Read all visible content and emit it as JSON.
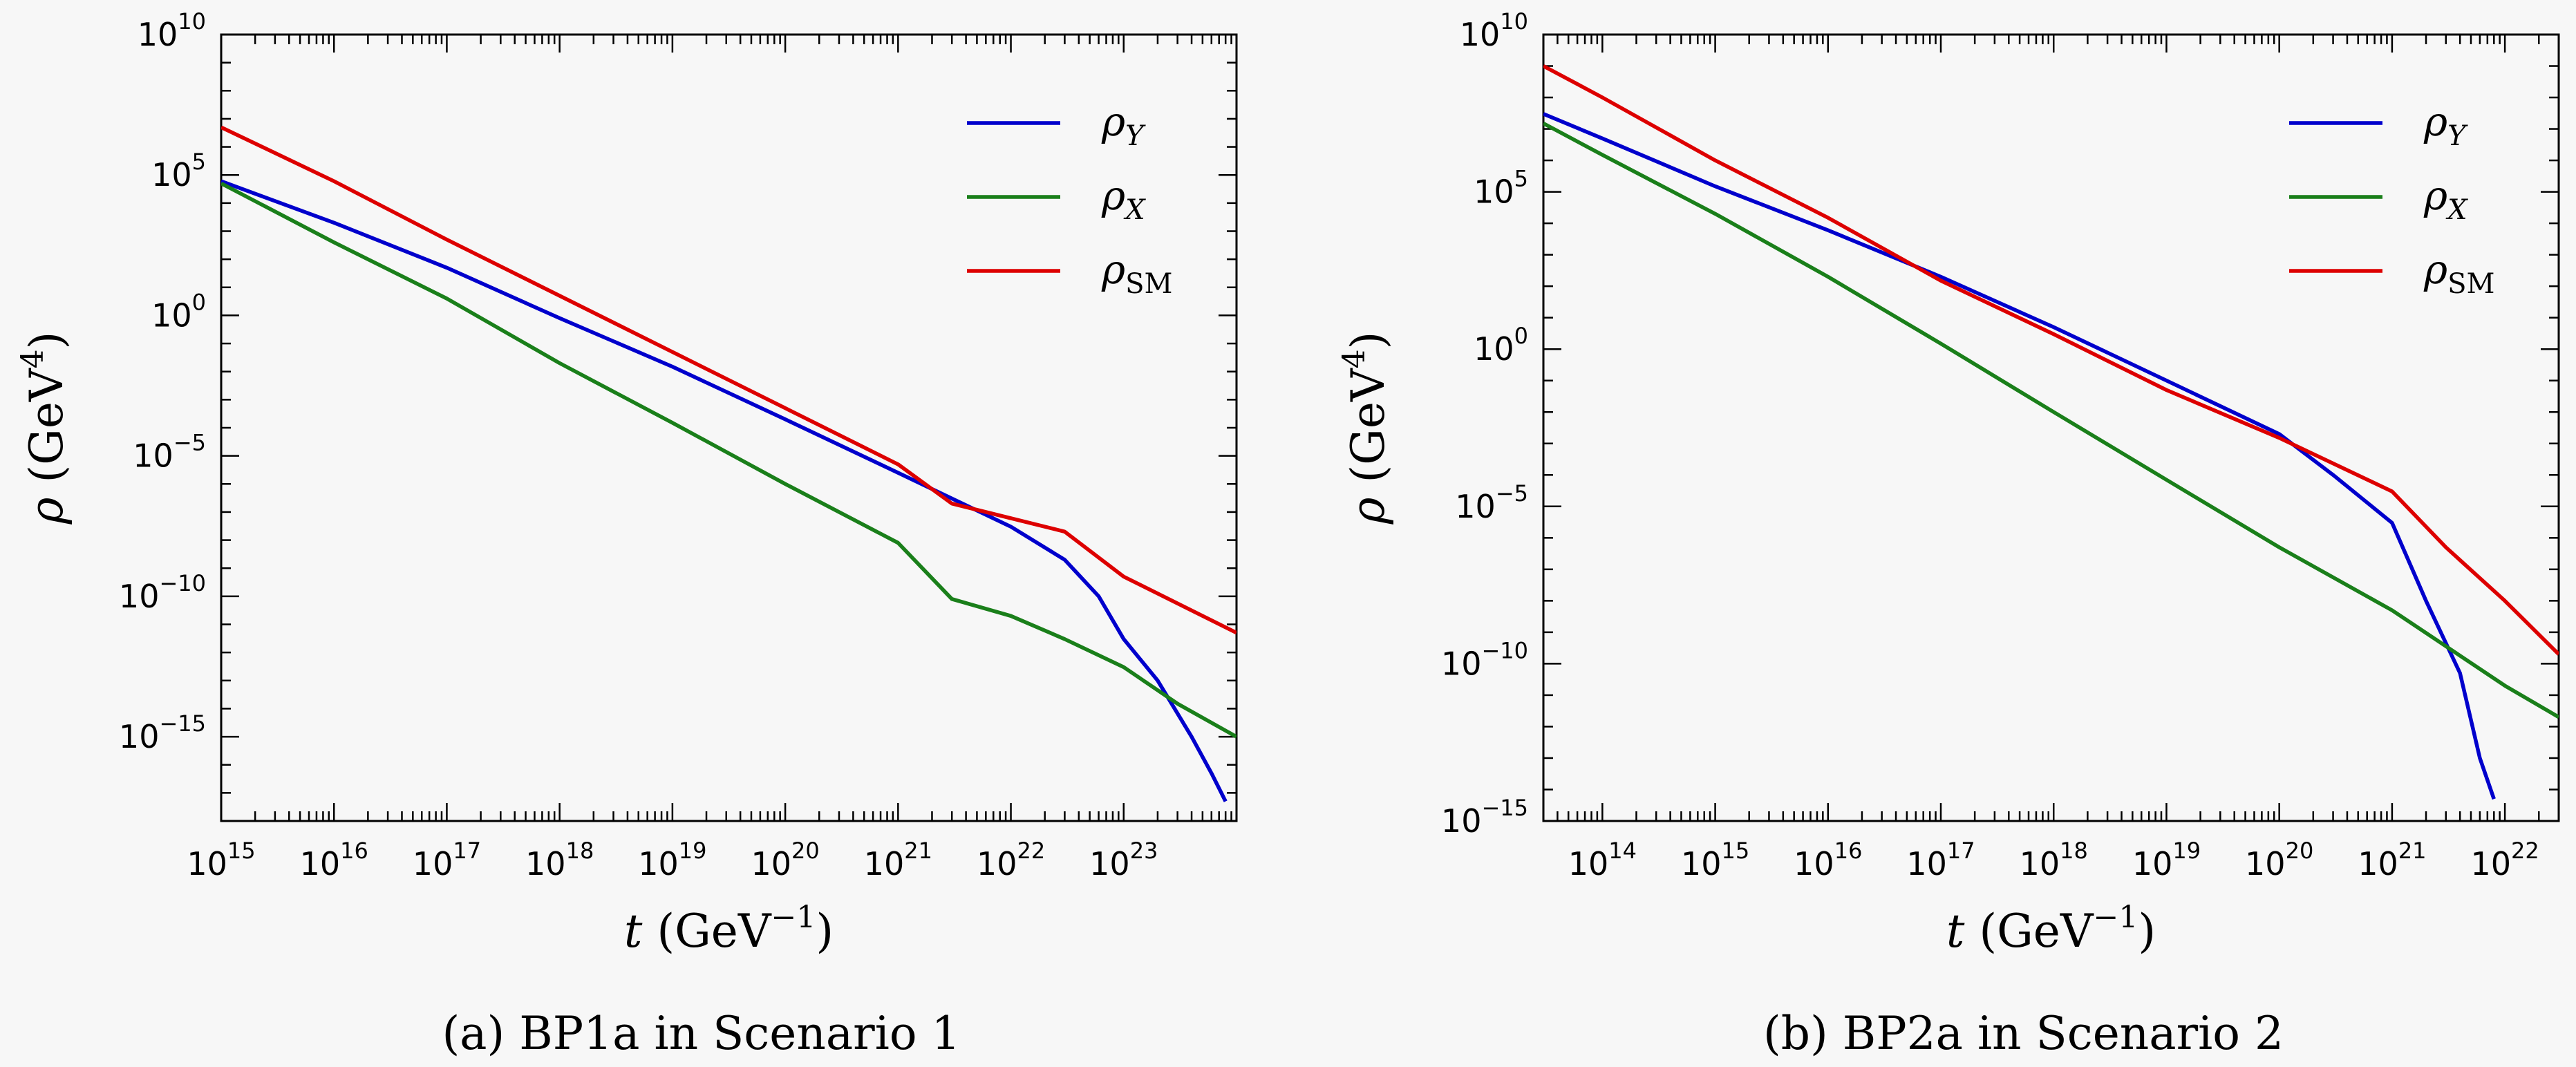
{
  "chart_data": [
    {
      "type": "line",
      "caption": "(a) BP1a in Scenario 1",
      "xlabel": {
        "symbol": "t",
        "unit": "(GeV",
        "exp": "−1",
        "close": ")"
      },
      "ylabel": {
        "symbol": "ρ",
        "unit": "(GeV",
        "exp": "4",
        "close": ")"
      },
      "xscale": "log",
      "yscale": "log",
      "xlim": [
        1000000000000000.0,
        1e+24
      ],
      "ylim": [
        1e-18,
        10000000000.0
      ],
      "xticks": [
        {
          "value": 1000000000000000.0,
          "base": "10",
          "exp": "15"
        },
        {
          "value": 1e+16,
          "base": "10",
          "exp": "16"
        },
        {
          "value": 1e+17,
          "base": "10",
          "exp": "17"
        },
        {
          "value": 1e+18,
          "base": "10",
          "exp": "18"
        },
        {
          "value": 1e+19,
          "base": "10",
          "exp": "19"
        },
        {
          "value": 1e+20,
          "base": "10",
          "exp": "20"
        },
        {
          "value": 1e+21,
          "base": "10",
          "exp": "21"
        },
        {
          "value": 1e+22,
          "base": "10",
          "exp": "22"
        },
        {
          "value": 1e+23,
          "base": "10",
          "exp": "23"
        }
      ],
      "yticks": [
        {
          "value": 10000000000.0,
          "base": "10",
          "exp": "10"
        },
        {
          "value": 100000.0,
          "base": "10",
          "exp": "5"
        },
        {
          "value": 1,
          "base": "10",
          "exp": "0"
        },
        {
          "value": 1e-05,
          "base": "10",
          "exp": "−5"
        },
        {
          "value": 1e-10,
          "base": "10",
          "exp": "−10"
        },
        {
          "value": 1e-15,
          "base": "10",
          "exp": "−15"
        }
      ],
      "legend": {
        "placement": "top-right"
      },
      "series": [
        {
          "name": "ρ",
          "sub": "Y",
          "sub_italic": true,
          "color": "#0000cc",
          "points": [
            [
              1000000000000000.0,
              60000.0
            ],
            [
              1e+16,
              2000.0
            ],
            [
              1e+17,
              50.0
            ],
            [
              1e+18,
              0.8
            ],
            [
              1e+19,
              0.015
            ],
            [
              1e+20,
              0.0002
            ],
            [
              1e+21,
              2.5e-06
            ],
            [
              1e+22,
              3e-08
            ],
            [
              3e+22,
              2e-09
            ],
            [
              6e+22,
              1e-10
            ],
            [
              1e+23,
              3e-12
            ],
            [
              2e+23,
              1e-13
            ],
            [
              4e+23,
              1e-15
            ],
            [
              6e+23,
              5e-17
            ],
            [
              8e+23,
              5e-18
            ]
          ]
        },
        {
          "name": "ρ",
          "sub": "X",
          "sub_italic": true,
          "color": "#1a7f1a",
          "points": [
            [
              1000000000000000.0,
              50000.0
            ],
            [
              1e+16,
              400.0
            ],
            [
              1e+17,
              4.0
            ],
            [
              1e+18,
              0.02
            ],
            [
              1e+19,
              0.00015
            ],
            [
              1e+20,
              1e-06
            ],
            [
              1e+21,
              8e-09
            ],
            [
              3e+21,
              8e-11
            ],
            [
              1e+22,
              2e-11
            ],
            [
              3e+22,
              3e-12
            ],
            [
              1e+23,
              3e-13
            ],
            [
              3e+23,
              1.5e-14
            ],
            [
              1e+24,
              1e-15
            ]
          ]
        },
        {
          "name": "ρ",
          "sub": "SM",
          "sub_italic": false,
          "color": "#dd0000",
          "points": [
            [
              1000000000000000.0,
              5000000.0
            ],
            [
              1e+16,
              60000.0
            ],
            [
              1e+17,
              500.0
            ],
            [
              1e+18,
              5.0
            ],
            [
              1e+19,
              0.05
            ],
            [
              1e+20,
              0.0005
            ],
            [
              1e+21,
              5e-06
            ],
            [
              3e+21,
              2e-07
            ],
            [
              1e+22,
              6e-08
            ],
            [
              3e+22,
              2e-08
            ],
            [
              1e+23,
              5e-10
            ],
            [
              1e+24,
              5e-12
            ]
          ]
        }
      ]
    },
    {
      "type": "line",
      "caption": "(b) BP2a in Scenario 2",
      "xlabel": {
        "symbol": "t",
        "unit": "(GeV",
        "exp": "−1",
        "close": ")"
      },
      "ylabel": {
        "symbol": "ρ",
        "unit": "(GeV",
        "exp": "4",
        "close": ")"
      },
      "xscale": "log",
      "yscale": "log",
      "xlim": [
        30000000000000.0,
        3e+22
      ],
      "ylim": [
        1e-15,
        10000000000.0
      ],
      "xticks": [
        {
          "value": 100000000000000.0,
          "base": "10",
          "exp": "14"
        },
        {
          "value": 1000000000000000.0,
          "base": "10",
          "exp": "15"
        },
        {
          "value": 1e+16,
          "base": "10",
          "exp": "16"
        },
        {
          "value": 1e+17,
          "base": "10",
          "exp": "17"
        },
        {
          "value": 1e+18,
          "base": "10",
          "exp": "18"
        },
        {
          "value": 1e+19,
          "base": "10",
          "exp": "19"
        },
        {
          "value": 1e+20,
          "base": "10",
          "exp": "20"
        },
        {
          "value": 1e+21,
          "base": "10",
          "exp": "21"
        },
        {
          "value": 1e+22,
          "base": "10",
          "exp": "22"
        }
      ],
      "yticks": [
        {
          "value": 10000000000.0,
          "base": "10",
          "exp": "10"
        },
        {
          "value": 100000.0,
          "base": "10",
          "exp": "5"
        },
        {
          "value": 1,
          "base": "10",
          "exp": "0"
        },
        {
          "value": 1e-05,
          "base": "10",
          "exp": "−5"
        },
        {
          "value": 1e-10,
          "base": "10",
          "exp": "−10"
        },
        {
          "value": 1e-15,
          "base": "10",
          "exp": "−15"
        }
      ],
      "legend": {
        "placement": "top-right"
      },
      "series": [
        {
          "name": "ρ",
          "sub": "Y",
          "sub_italic": true,
          "color": "#0000cc",
          "points": [
            [
              30000000000000.0,
              30000000.0
            ],
            [
              100000000000000.0,
              5000000.0
            ],
            [
              1000000000000000.0,
              150000.0
            ],
            [
              1e+16,
              6000.0
            ],
            [
              1e+17,
              200.0
            ],
            [
              1e+18,
              5.0
            ],
            [
              1e+19,
              0.1
            ],
            [
              1e+20,
              0.002
            ],
            [
              3e+20,
              0.0001
            ],
            [
              1e+21,
              3e-06
            ],
            [
              2e+21,
              1e-08
            ],
            [
              4e+21,
              5e-11
            ],
            [
              6e+21,
              1e-13
            ],
            [
              8e+21,
              5e-15
            ]
          ]
        },
        {
          "name": "ρ",
          "sub": "X",
          "sub_italic": true,
          "color": "#1a7f1a",
          "points": [
            [
              30000000000000.0,
              15000000.0
            ],
            [
              100000000000000.0,
              1500000.0
            ],
            [
              1000000000000000.0,
              20000.0
            ],
            [
              1e+16,
              200.0
            ],
            [
              1e+17,
              1.5
            ],
            [
              1e+18,
              0.01
            ],
            [
              1e+19,
              7e-05
            ],
            [
              1e+20,
              5e-07
            ],
            [
              1e+21,
              5e-09
            ],
            [
              1e+22,
              2e-11
            ],
            [
              3e+22,
              2e-12
            ]
          ]
        },
        {
          "name": "ρ",
          "sub": "SM",
          "sub_italic": false,
          "color": "#dd0000",
          "points": [
            [
              30000000000000.0,
              1000000000.0
            ],
            [
              100000000000000.0,
              100000000.0
            ],
            [
              1000000000000000.0,
              1000000.0
            ],
            [
              1e+16,
              15000.0
            ],
            [
              1e+17,
              150.0
            ],
            [
              1e+18,
              3.0
            ],
            [
              1e+19,
              0.05
            ],
            [
              1e+20,
              0.0015
            ],
            [
              1e+21,
              3e-05
            ],
            [
              3e+21,
              5e-07
            ],
            [
              1e+22,
              1e-08
            ],
            [
              3e+22,
              2e-10
            ]
          ]
        }
      ]
    }
  ]
}
